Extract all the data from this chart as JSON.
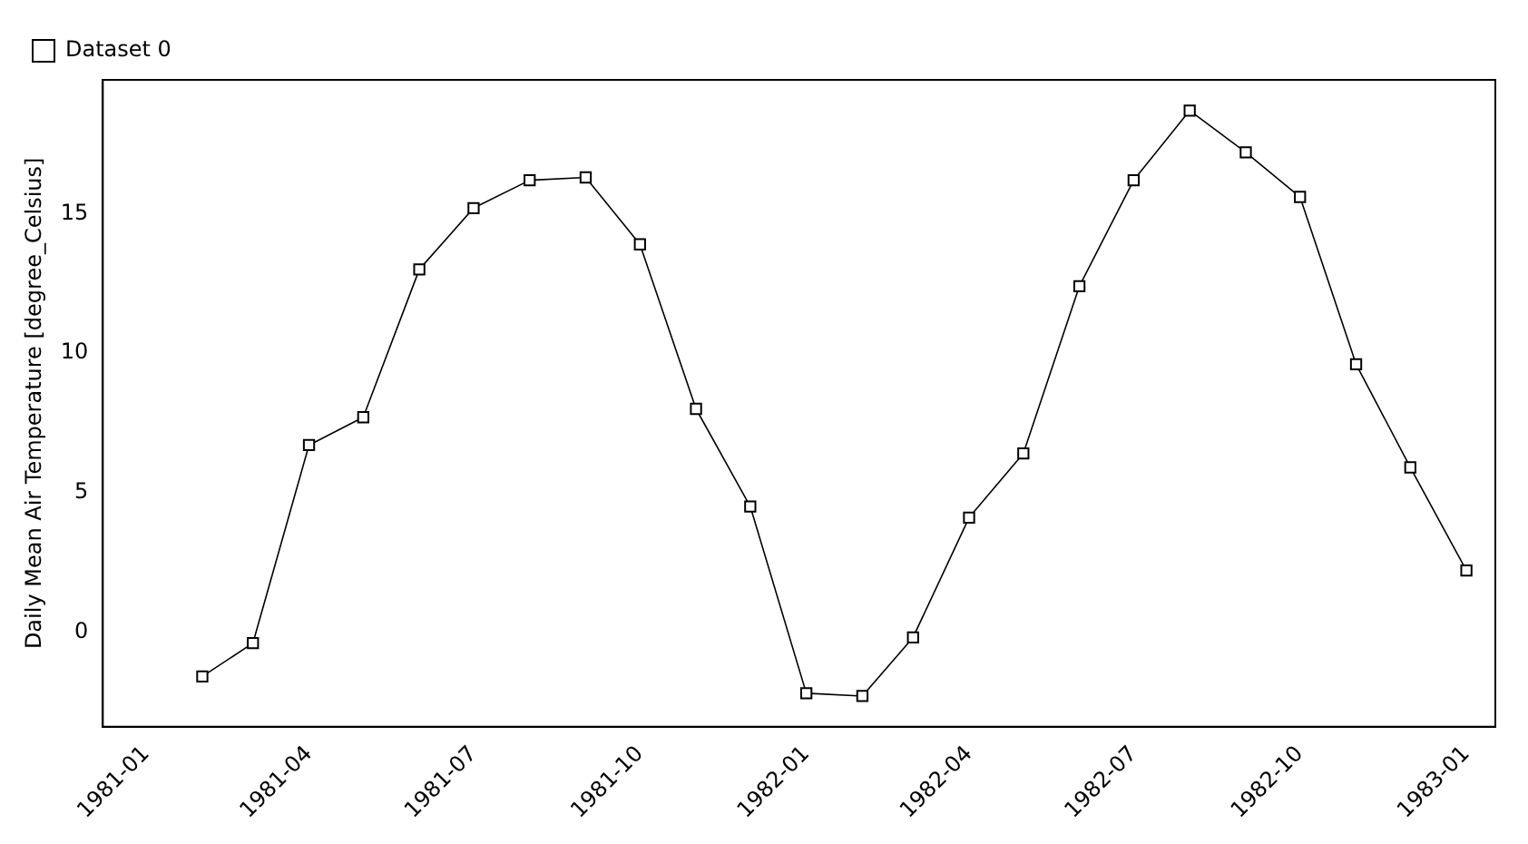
{
  "chart_data": {
    "type": "line",
    "ylabel": "Daily Mean Air Temperature [degree_Celsius]",
    "x": [
      "1981-02",
      "1981-03",
      "1981-04",
      "1981-05",
      "1981-06",
      "1981-07",
      "1981-08",
      "1981-09",
      "1981-10",
      "1981-11",
      "1981-12",
      "1982-01",
      "1982-02",
      "1982-03",
      "1982-04",
      "1982-05",
      "1982-06",
      "1982-07",
      "1982-08",
      "1982-09",
      "1982-10",
      "1982-11",
      "1982-12",
      "1983-01"
    ],
    "series": [
      {
        "name": "Dataset 0",
        "color": "#000000",
        "values": [
          -1.6,
          -0.4,
          6.7,
          7.7,
          13.0,
          15.2,
          16.2,
          16.3,
          13.9,
          8.0,
          4.5,
          -2.2,
          -2.3,
          -0.2,
          4.1,
          6.4,
          12.4,
          16.2,
          18.7,
          17.2,
          15.6,
          9.6,
          5.9,
          2.2
        ]
      }
    ],
    "xlim": [
      "1980-12-08",
      "1983-01-17"
    ],
    "ylim": [
      -3.4,
      19.8
    ],
    "xticks": [
      "1981-01",
      "1981-04",
      "1981-07",
      "1981-10",
      "1982-01",
      "1982-04",
      "1982-07",
      "1982-10",
      "1983-01"
    ],
    "yticks": [
      0,
      5,
      10,
      15
    ],
    "marker": "square",
    "line_style": "solid",
    "grid": false,
    "legend": "top left"
  }
}
